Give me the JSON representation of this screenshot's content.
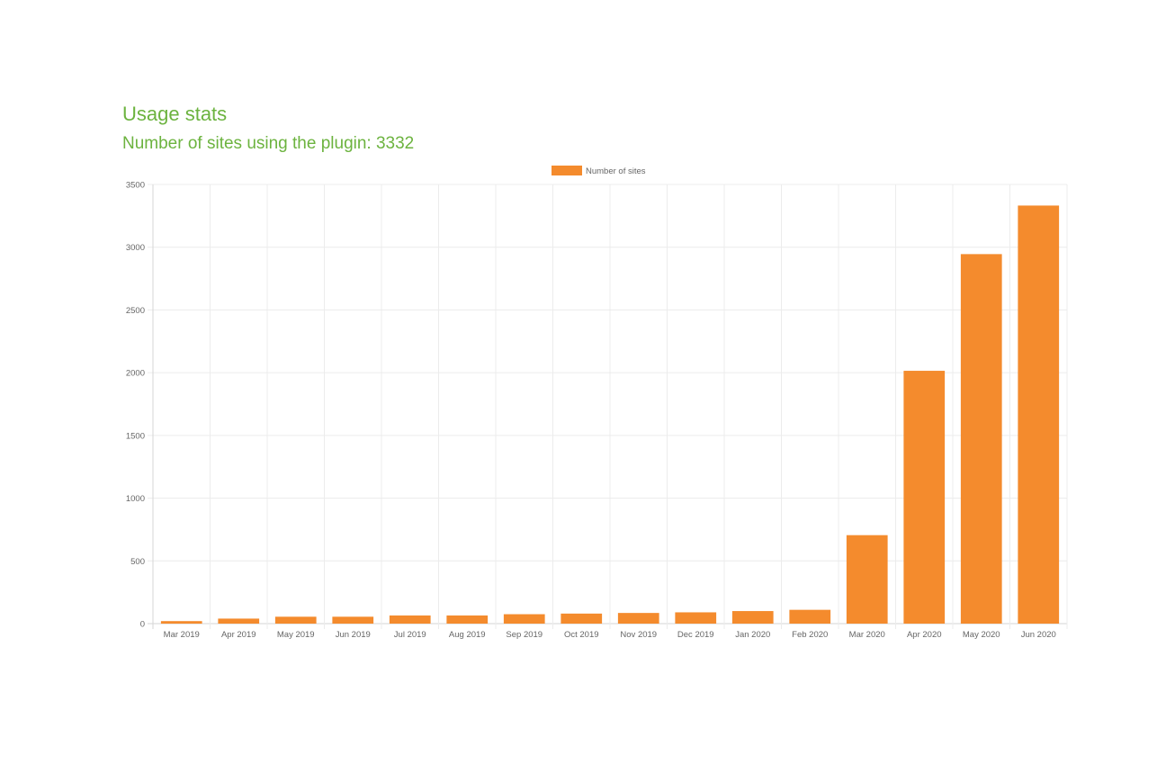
{
  "header": {
    "title": "Usage stats",
    "subtitle": "Number of sites using the plugin: 3332"
  },
  "colors": {
    "accent_text": "#6cb33f",
    "bar": "#f48b2d",
    "grid": "#ececec",
    "tick_text": "#666666"
  },
  "chart_data": {
    "type": "bar",
    "categories": [
      "Mar 2019",
      "Apr 2019",
      "May 2019",
      "Jun 2019",
      "Jul 2019",
      "Aug 2019",
      "Sep 2019",
      "Oct 2019",
      "Nov 2019",
      "Dec 2019",
      "Jan 2020",
      "Feb 2020",
      "Mar 2020",
      "Apr 2020",
      "May 2020",
      "Jun 2020"
    ],
    "series": [
      {
        "name": "Number of sites",
        "values": [
          20,
          40,
          55,
          55,
          65,
          65,
          75,
          80,
          85,
          90,
          100,
          110,
          705,
          2015,
          2945,
          3332
        ]
      }
    ],
    "ylim": [
      0,
      3500
    ],
    "yticks": [
      0,
      500,
      1000,
      1500,
      2000,
      2500,
      3000,
      3500
    ],
    "grid": true,
    "legend": "top-center",
    "xlabel": "",
    "ylabel": ""
  }
}
